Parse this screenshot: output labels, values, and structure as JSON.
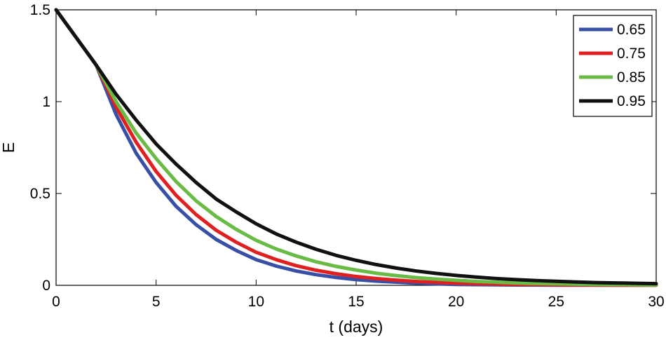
{
  "chart_data": {
    "type": "line",
    "title": "",
    "xlabel": "t (days)",
    "ylabel": "E",
    "xlim": [
      0,
      30
    ],
    "ylim": [
      0,
      1.5
    ],
    "xticks": [
      0,
      5,
      10,
      15,
      20,
      25,
      30
    ],
    "yticks": [
      0,
      0.5,
      1,
      1.5
    ],
    "xtick_labels": [
      "0",
      "5",
      "10",
      "15",
      "20",
      "25",
      "30"
    ],
    "ytick_labels": [
      "0",
      "0.5",
      "1",
      "1.5"
    ],
    "grid": false,
    "legend_position": "top-right",
    "x": [
      0,
      1,
      2,
      3,
      4,
      5,
      6,
      7,
      8,
      9,
      10,
      11,
      12,
      13,
      14,
      15,
      16,
      17,
      18,
      19,
      20,
      21,
      22,
      23,
      24,
      25,
      26,
      27,
      28,
      29,
      30
    ],
    "series": [
      {
        "name": "0.65",
        "color": "#3750a6",
        "values": [
          1.5,
          1.35,
          1.2,
          0.93,
          0.72,
          0.56,
          0.43,
          0.33,
          0.25,
          0.19,
          0.14,
          0.105,
          0.078,
          0.058,
          0.043,
          0.031,
          0.023,
          0.017,
          0.012,
          0.008,
          0.005,
          0.004,
          0.003,
          0.002,
          0.002,
          0.001,
          0.001,
          0.001,
          0.001,
          0.001,
          0.001
        ]
      },
      {
        "name": "0.75",
        "color": "#e02020",
        "values": [
          1.5,
          1.35,
          1.2,
          0.97,
          0.78,
          0.62,
          0.49,
          0.385,
          0.3,
          0.235,
          0.18,
          0.14,
          0.107,
          0.082,
          0.063,
          0.048,
          0.037,
          0.028,
          0.021,
          0.016,
          0.012,
          0.009,
          0.007,
          0.005,
          0.004,
          0.003,
          0.002,
          0.002,
          0.001,
          0.001,
          0.001
        ]
      },
      {
        "name": "0.85",
        "color": "#6abb45",
        "values": [
          1.5,
          1.35,
          1.2,
          1.0,
          0.83,
          0.69,
          0.565,
          0.46,
          0.375,
          0.305,
          0.245,
          0.198,
          0.16,
          0.128,
          0.103,
          0.083,
          0.066,
          0.053,
          0.042,
          0.034,
          0.027,
          0.021,
          0.017,
          0.013,
          0.01,
          0.008,
          0.006,
          0.005,
          0.004,
          0.003,
          0.002
        ]
      },
      {
        "name": "0.95",
        "color": "#111111",
        "values": [
          1.5,
          1.35,
          1.2,
          1.04,
          0.9,
          0.77,
          0.66,
          0.56,
          0.47,
          0.4,
          0.335,
          0.28,
          0.235,
          0.196,
          0.163,
          0.136,
          0.113,
          0.094,
          0.078,
          0.065,
          0.054,
          0.045,
          0.037,
          0.031,
          0.026,
          0.022,
          0.018,
          0.015,
          0.013,
          0.011,
          0.009
        ]
      }
    ]
  }
}
